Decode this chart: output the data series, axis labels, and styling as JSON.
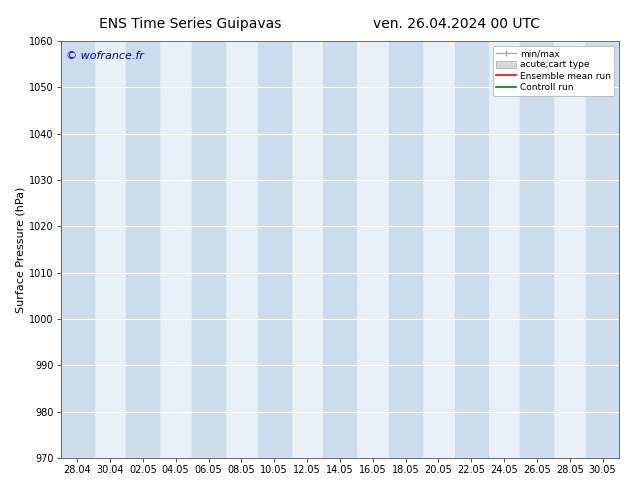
{
  "title_left": "ENS Time Series Guipavas",
  "title_right": "ven. 26.04.2024 00 UTC",
  "ylabel": "Surface Pressure (hPa)",
  "ylim": [
    970,
    1060
  ],
  "yticks": [
    970,
    980,
    990,
    1000,
    1010,
    1020,
    1030,
    1040,
    1050,
    1060
  ],
  "xtick_labels": [
    "28.04",
    "30.04",
    "02.05",
    "04.05",
    "06.05",
    "08.05",
    "10.05",
    "12.05",
    "14.05",
    "16.05",
    "18.05",
    "20.05",
    "22.05",
    "24.05",
    "26.05",
    "28.05",
    "30.05"
  ],
  "watermark": "© wofrance.fr",
  "watermark_color": "#0000cc",
  "bg_color": "#ffffff",
  "plot_bg_color": "#e8f0f8",
  "band_color": "#cddcec",
  "legend_entries": [
    {
      "label": "min/max",
      "color": "#aaaaaa",
      "lw": 1.2,
      "style": "minmax"
    },
    {
      "label": "acute;cart type",
      "color": "#cccccc",
      "lw": 8,
      "style": "bar"
    },
    {
      "label": "Ensemble mean run",
      "color": "#ff0000",
      "lw": 1.5,
      "style": "line"
    },
    {
      "label": "Controll run",
      "color": "#008000",
      "lw": 1.5,
      "style": "line"
    }
  ],
  "n_xticks": 17,
  "xmin": 0,
  "xmax": 16,
  "grid_color": "#ffffff",
  "tick_fontsize": 7,
  "label_fontsize": 8,
  "title_fontsize": 10,
  "watermark_fontsize": 8
}
